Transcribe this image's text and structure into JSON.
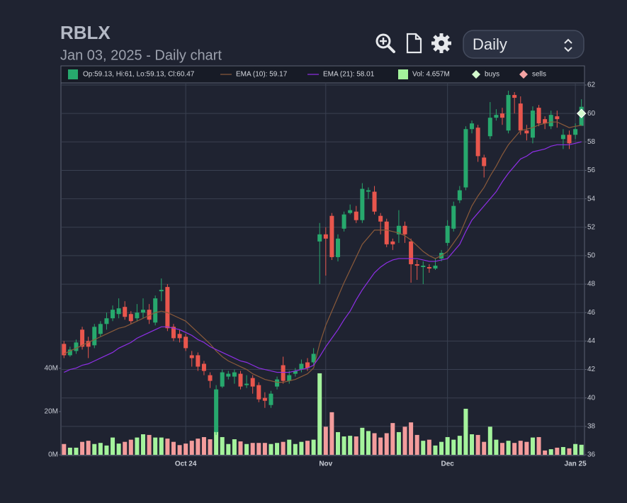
{
  "header": {
    "title": "RBLX",
    "subtitle": "Jan 03, 2025 - Daily chart",
    "interval": "Daily"
  },
  "chart_data": {
    "type": "candlestick",
    "categories": [
      null,
      null,
      null,
      null,
      null,
      null,
      null,
      null,
      null,
      null,
      null,
      null,
      null,
      null,
      null,
      null,
      null,
      null,
      null,
      null,
      "Oct 24",
      null,
      null,
      null,
      null,
      null,
      null,
      null,
      null,
      null,
      null,
      null,
      null,
      null,
      null,
      null,
      null,
      null,
      null,
      null,
      null,
      null,
      null,
      "Nov",
      null,
      null,
      null,
      null,
      null,
      null,
      null,
      null,
      null,
      null,
      null,
      null,
      null,
      null,
      null,
      null,
      null,
      null,
      null,
      "Dec",
      null,
      null,
      null,
      null,
      null,
      null,
      null,
      null,
      null,
      null,
      null,
      null,
      null,
      null,
      null,
      null,
      null,
      null,
      null,
      null,
      "Jan 25",
      null
    ],
    "ohlc_label": "Op:59.13, Hi:61, Lo:59.13, Cl:60.47",
    "up_color": "#27a86d",
    "down_color": "#e8564d",
    "open": [
      43.8,
      43.0,
      43.3,
      44.8,
      44.0,
      43.7,
      44.5,
      45.2,
      45.6,
      45.9,
      46.4,
      45.9,
      45.6,
      46.0,
      46.2,
      45.3,
      47.5,
      47.8,
      45.0,
      44.5,
      44.3,
      43.0,
      43.0,
      42.4,
      41.6,
      37.6,
      40.8,
      41.5,
      41.5,
      41.7,
      40.9,
      41.4,
      40.9,
      40.0,
      39.5,
      40.8,
      42.3,
      41.2,
      41.7,
      42.0,
      42.5,
      42.5,
      51.0,
      51.5,
      52.8,
      49.9,
      51.9,
      53.0,
      53.1,
      52.5,
      54.5,
      54.5,
      52.8,
      52.4,
      51.0,
      51.5,
      52.1,
      51.0,
      49.4,
      49.2,
      49.2,
      49.1,
      49.8,
      50.9,
      51.9,
      53.9,
      54.8,
      58.9,
      59.0,
      56.9,
      58.4,
      59.7,
      60.0,
      58.8,
      61.3,
      60.7,
      58.8,
      58.3,
      60.4,
      59.6,
      59.1,
      59.8,
      58.2,
      58.5,
      58.5,
      59.13
    ],
    "high": [
      44.0,
      43.6,
      44.1,
      45.0,
      44.3,
      45.2,
      45.4,
      46.0,
      46.5,
      47.0,
      46.8,
      46.1,
      46.6,
      47.0,
      46.6,
      47.2,
      48.4,
      48.0,
      45.2,
      44.8,
      44.5,
      43.3,
      43.2,
      42.6,
      41.8,
      40.9,
      42.0,
      41.9,
      42.0,
      41.9,
      41.6,
      41.6,
      41.1,
      40.4,
      40.5,
      41.5,
      42.9,
      41.9,
      42.1,
      42.7,
      42.8,
      43.5,
      52.3,
      52.0,
      53.0,
      51.5,
      53.1,
      53.6,
      53.5,
      55.1,
      54.8,
      54.9,
      53.0,
      52.6,
      51.2,
      53.2,
      52.4,
      51.2,
      49.7,
      49.6,
      49.4,
      49.8,
      50.4,
      52.5,
      53.8,
      54.9,
      59.1,
      59.5,
      59.2,
      57.1,
      60.8,
      60.3,
      60.4,
      61.6,
      61.5,
      61.2,
      59.2,
      60.5,
      60.6,
      59.8,
      60.2,
      60.2,
      58.9,
      58.8,
      59.3,
      61
    ],
    "low": [
      42.8,
      42.9,
      43.1,
      43.4,
      42.8,
      43.5,
      44.3,
      44.8,
      45.4,
      45.6,
      45.5,
      45.2,
      45.4,
      45.6,
      45.2,
      45.1,
      46.8,
      44.7,
      44.0,
      43.9,
      43.3,
      42.2,
      41.9,
      41.6,
      40.7,
      37.4,
      40.7,
      41.3,
      41.0,
      40.6,
      40.7,
      40.3,
      39.7,
      39.3,
      39.3,
      40.6,
      41.0,
      41.0,
      41.5,
      41.8,
      41.9,
      42.3,
      48.0,
      48.6,
      49.7,
      49.6,
      51.7,
      52.9,
      52.3,
      52.3,
      54.0,
      52.9,
      51.5,
      50.6,
      50.4,
      50.9,
      50.9,
      48.1,
      48.3,
      48.0,
      48.8,
      49.0,
      49.6,
      50.7,
      51.7,
      53.7,
      54.6,
      58.6,
      56.6,
      55.5,
      58.2,
      59.5,
      59.2,
      58.6,
      60.0,
      58.5,
      58.1,
      57.9,
      59.1,
      58.9,
      58.9,
      59.0,
      57.5,
      57.5,
      58.2,
      59.13
    ],
    "close": [
      43.0,
      43.4,
      43.9,
      43.6,
      43.6,
      45.0,
      45.2,
      45.6,
      46.2,
      46.3,
      45.7,
      45.4,
      46.0,
      46.2,
      45.5,
      47.0,
      47.6,
      44.9,
      44.2,
      44.2,
      43.5,
      42.8,
      42.2,
      41.9,
      41.2,
      40.6,
      41.8,
      41.7,
      41.8,
      40.8,
      41.0,
      40.8,
      39.9,
      39.8,
      40.3,
      41.3,
      41.2,
      41.6,
      41.9,
      42.4,
      42.1,
      43.1,
      51.5,
      51.2,
      49.9,
      51.2,
      52.9,
      53.2,
      52.5,
      54.7,
      54.6,
      53.1,
      52.4,
      50.8,
      50.8,
      52.1,
      51.5,
      49.4,
      49.3,
      49.3,
      49.1,
      49.3,
      50.2,
      52.1,
      53.5,
      54.6,
      58.9,
      59.3,
      57.0,
      56.3,
      59.7,
      59.9,
      59.7,
      61.3,
      61.1,
      58.8,
      58.6,
      60.2,
      59.3,
      59.3,
      59.9,
      59.6,
      58.5,
      57.9,
      58.9,
      60.47
    ],
    "ylim": [
      36,
      62
    ],
    "yticks": [
      36,
      38,
      40,
      42,
      44,
      46,
      48,
      50,
      52,
      54,
      56,
      58,
      60,
      62
    ],
    "grid": true,
    "series": [
      {
        "name": "EMA (10): 59.17",
        "color": "#8a5a3a",
        "values": [
          43.1,
          43.3,
          43.5,
          43.7,
          43.9,
          44.1,
          44.3,
          44.5,
          44.7,
          44.9,
          45.0,
          45.2,
          45.4,
          45.6,
          45.8,
          46.0,
          46.1,
          46.0,
          45.8,
          45.6,
          45.4,
          45.0,
          44.6,
          44.2,
          43.8,
          43.3,
          42.9,
          42.6,
          42.4,
          42.2,
          42.0,
          41.7,
          41.5,
          41.3,
          41.2,
          41.1,
          41.1,
          41.2,
          41.3,
          41.5,
          41.7,
          42.1,
          43.8,
          45.1,
          46.1,
          47.1,
          48.1,
          49.0,
          49.9,
          50.8,
          51.3,
          51.8,
          51.8,
          51.8,
          51.7,
          51.6,
          51.4,
          51.1,
          50.7,
          50.3,
          50.0,
          49.8,
          50.0,
          50.3,
          50.9,
          51.5,
          52.5,
          53.5,
          54.2,
          54.8,
          55.6,
          56.3,
          57.1,
          57.8,
          58.3,
          58.8,
          58.9,
          59.0,
          59.2,
          59.3,
          59.4,
          59.4,
          59.2,
          59.0,
          59.1,
          59.17
        ]
      },
      {
        "name": "EMA (21): 58.01",
        "color": "#8e2fe6",
        "values": [
          41.8,
          42.0,
          42.1,
          42.3,
          42.4,
          42.6,
          42.8,
          43.0,
          43.2,
          43.5,
          43.7,
          43.9,
          44.2,
          44.4,
          44.6,
          44.8,
          45.0,
          45.0,
          44.9,
          44.8,
          44.6,
          44.4,
          44.1,
          43.9,
          43.6,
          43.4,
          43.2,
          43.0,
          42.8,
          42.6,
          42.5,
          42.3,
          42.1,
          42.0,
          41.9,
          41.8,
          41.8,
          41.8,
          41.9,
          42.0,
          42.1,
          42.3,
          42.9,
          43.6,
          44.2,
          44.8,
          45.5,
          46.1,
          46.9,
          47.6,
          48.2,
          48.8,
          49.2,
          49.5,
          49.7,
          49.8,
          49.8,
          49.8,
          49.8,
          49.7,
          49.6,
          49.6,
          49.7,
          49.8,
          50.3,
          50.8,
          51.7,
          52.5,
          53.0,
          53.5,
          54.0,
          54.5,
          55.2,
          55.8,
          56.3,
          56.8,
          57.0,
          57.3,
          57.4,
          57.5,
          57.7,
          57.8,
          57.8,
          57.8,
          57.9,
          58.01
        ]
      }
    ],
    "volume": {
      "name": "Vol: 4.657M",
      "up_color": "#a4f39c",
      "down_color": "#f39c9c",
      "values": [
        5,
        3.3,
        3.3,
        6,
        6.5,
        5,
        5.5,
        4.3,
        8,
        5.2,
        6,
        7,
        8,
        9.5,
        9.2,
        8,
        8,
        7.5,
        6,
        4.5,
        5.2,
        6.5,
        7.5,
        8.2,
        7.2,
        10.8,
        8.2,
        5,
        7.2,
        6.2,
        5,
        5.5,
        5.5,
        5.5,
        5,
        5.5,
        6,
        7,
        5,
        6,
        6.5,
        7,
        37.7,
        13,
        19.7,
        10.5,
        8.5,
        8.8,
        8.5,
        12.5,
        11,
        10,
        8,
        10,
        14.7,
        10.5,
        13,
        15,
        9.2,
        6.5,
        7,
        4.3,
        6,
        8.2,
        7,
        8.8,
        21.3,
        9.5,
        9.2,
        6,
        13,
        7,
        5.5,
        6.5,
        5.5,
        6.5,
        6,
        8,
        8.2,
        2,
        2.6,
        3.3,
        3.6,
        3,
        5,
        4.657
      ],
      "ylim": [
        0,
        171
      ],
      "yticks": [
        {
          "value": 0,
          "label": "0M"
        },
        {
          "value": 20,
          "label": "20M"
        },
        {
          "value": 40,
          "label": "40M"
        }
      ]
    },
    "buys": {
      "name": "buys",
      "color": "#d3f9cd",
      "values": [
        null,
        null,
        null,
        null,
        null,
        null,
        null,
        null,
        null,
        null,
        null,
        null,
        null,
        null,
        null,
        null,
        null,
        null,
        null,
        null,
        null,
        null,
        null,
        null,
        null,
        null,
        null,
        null,
        null,
        null,
        null,
        null,
        null,
        null,
        null,
        null,
        null,
        null,
        null,
        null,
        null,
        null,
        null,
        null,
        null,
        null,
        null,
        null,
        null,
        null,
        null,
        null,
        null,
        null,
        null,
        null,
        null,
        null,
        null,
        null,
        null,
        null,
        null,
        null,
        null,
        null,
        null,
        null,
        null,
        null,
        null,
        null,
        null,
        null,
        null,
        null,
        null,
        null,
        null,
        null,
        null,
        null,
        null,
        null,
        null,
        60
      ]
    },
    "sells": {
      "name": "sells",
      "color": "#f4a3a3"
    }
  }
}
